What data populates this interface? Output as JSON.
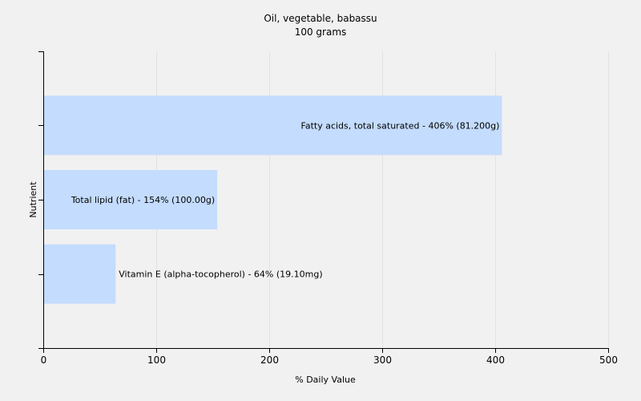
{
  "chart_data": {
    "type": "bar",
    "orientation": "horizontal",
    "title": "Oil, vegetable, babassu",
    "subtitle": "100 grams",
    "xlabel": "% Daily Value",
    "ylabel": "Nutrient",
    "xlim": [
      0,
      500
    ],
    "xticks": [
      0,
      100,
      200,
      300,
      400,
      500
    ],
    "grid": true,
    "bar_color": "#c4dcfd",
    "bars": [
      {
        "label": "Fatty acids, total saturated - 406% (81.200g)",
        "value": 406
      },
      {
        "label": "Total lipid (fat) - 154% (100.00g)",
        "value": 154
      },
      {
        "label": "Vitamin E (alpha-tocopherol) - 64% (19.10mg)",
        "value": 64
      }
    ]
  }
}
